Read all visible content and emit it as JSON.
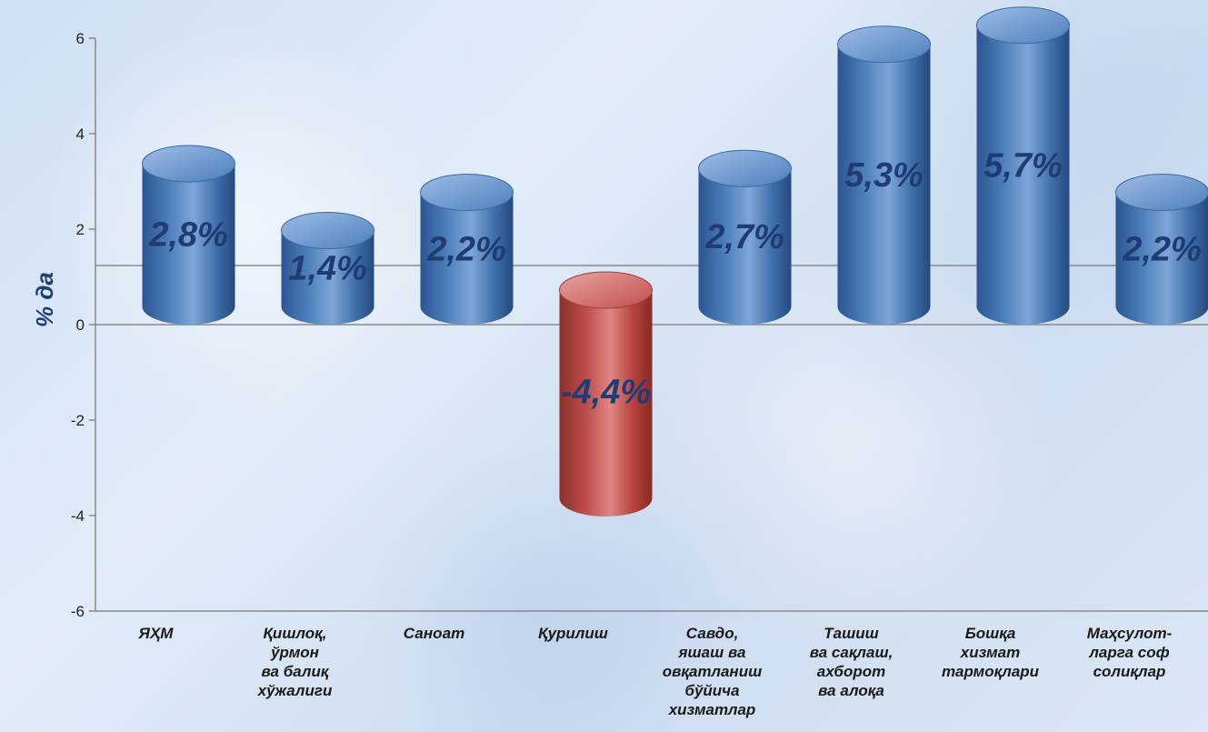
{
  "chart_data": {
    "type": "bar",
    "categories": [
      "ЯҲМ",
      "Қишлоқ, ўрмон ва балиқ хўжалиги",
      "Саноат",
      "Қурилиш",
      "Савдо, яшаш ва овқатланиш бўйича хизматлар",
      "Ташиш ва сақлаш, ахборот ва алоқа",
      "Бошқа хизмат тармоқлари",
      "Маҳсулот-ларга соф солиқлар"
    ],
    "category_lines": [
      [
        "ЯҲМ"
      ],
      [
        "Қишлоқ,",
        "ўрмон",
        "ва балиқ",
        "хўжалиги"
      ],
      [
        "Саноат"
      ],
      [
        "Қурилиш"
      ],
      [
        "Савдо,",
        "яшаш ва",
        "овқатланиш",
        "бўйича",
        "хизматлар"
      ],
      [
        "Ташиш",
        "ва сақлаш,",
        "ахборот",
        "ва алоқа"
      ],
      [
        "Бошқа",
        "хизмат",
        "тармоқлари"
      ],
      [
        "Маҳсулот-",
        "ларга соф",
        "солиқлар"
      ]
    ],
    "values": [
      2.8,
      1.4,
      2.2,
      -4.4,
      2.7,
      5.3,
      5.7,
      2.2
    ],
    "data_labels": [
      "2,8%",
      "1,4%",
      "2,2%",
      "-4,4%",
      "2,7%",
      "5,3%",
      "5,7%",
      "2,2%"
    ],
    "ylabel": "% да",
    "ylim": [
      -6,
      6
    ],
    "yticks": [
      -6,
      -4,
      -2,
      0,
      2,
      4,
      6
    ],
    "colors": {
      "positive": "#4f81bd",
      "negative": "#c0504d",
      "label": "#1f3c75"
    }
  }
}
